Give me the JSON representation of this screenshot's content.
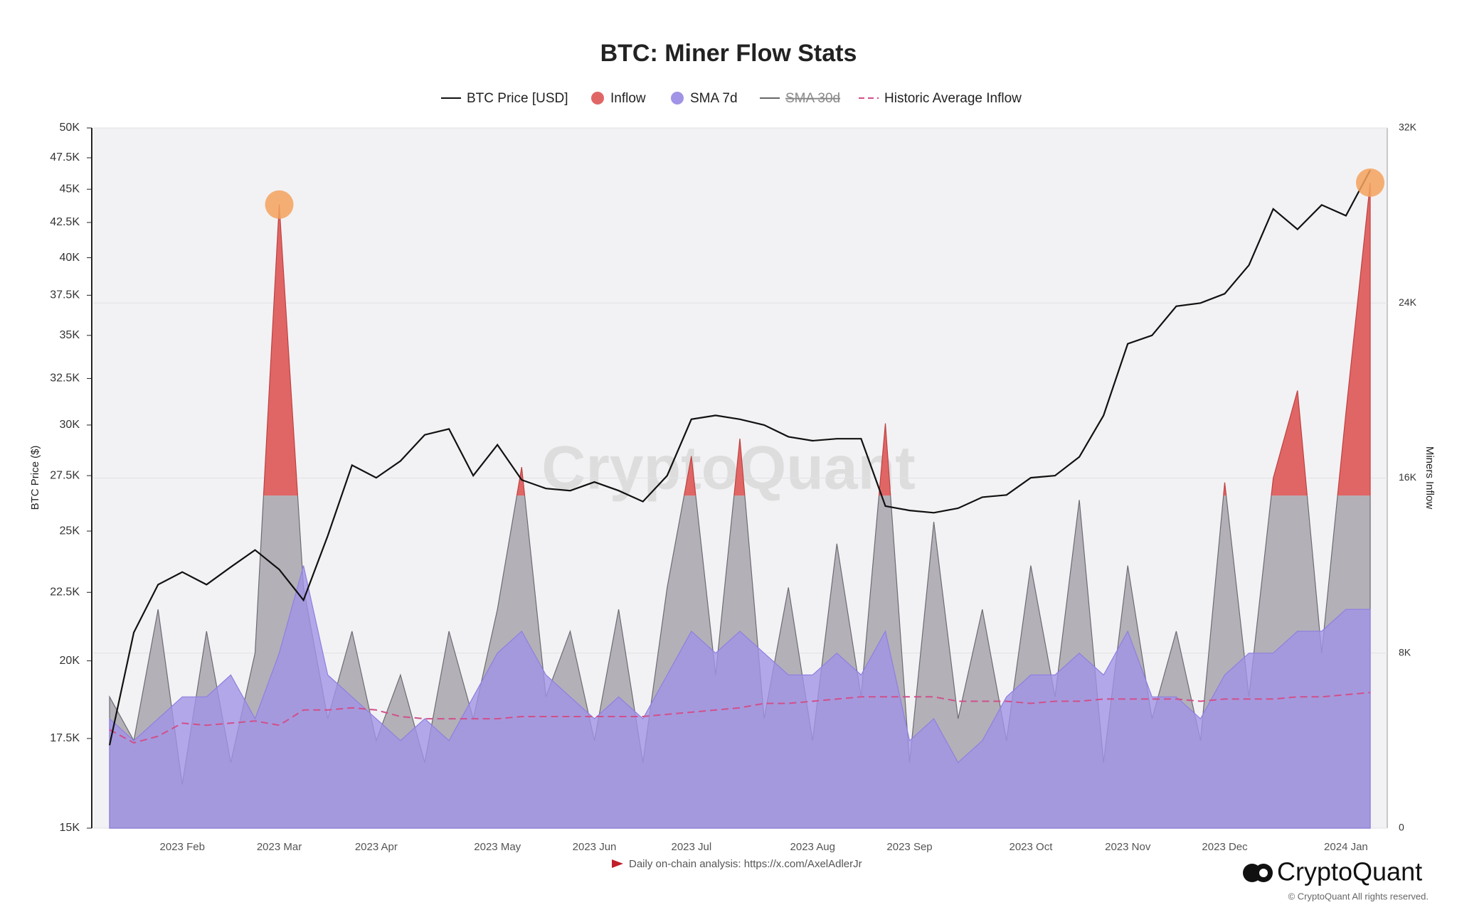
{
  "chart_data": {
    "type": "dual_axis_area_line",
    "title": "BTC: Miner Flow Stats",
    "y_label": "BTC Price ($)",
    "y2_label": "Miners Inflow",
    "watermark": "CryptoQuant",
    "footer_note": "Daily on-chain analysis: https://x.com/AxelAdlerJr",
    "brand": "CryptoQuant",
    "copyright": "© CryptoQuant All rights reserved.",
    "categories": [
      null,
      null,
      null,
      "2023 Feb",
      null,
      null,
      null,
      "2023 Mar",
      null,
      null,
      null,
      "2023 Apr",
      null,
      null,
      null,
      null,
      "2023 May",
      null,
      null,
      null,
      "2023 Jun",
      null,
      null,
      null,
      "2023 Jul",
      null,
      null,
      null,
      null,
      "2023 Aug",
      null,
      null,
      null,
      "2023 Sep",
      null,
      null,
      null,
      null,
      "2023 Oct",
      null,
      null,
      null,
      "2023 Nov",
      null,
      null,
      null,
      "2023 Dec",
      null,
      null,
      null,
      null,
      "2024 Jan",
      null
    ],
    "ylim": [
      15000,
      50000
    ],
    "y_scale": "log",
    "yticks": [
      {
        "value": 15000,
        "label": "15K"
      },
      {
        "value": 17500,
        "label": "17.5K"
      },
      {
        "value": 20000,
        "label": "20K"
      },
      {
        "value": 22500,
        "label": "22.5K"
      },
      {
        "value": 25000,
        "label": "25K"
      },
      {
        "value": 27500,
        "label": "27.5K"
      },
      {
        "value": 30000,
        "label": "30K"
      },
      {
        "value": 32500,
        "label": "32.5K"
      },
      {
        "value": 35000,
        "label": "35K"
      },
      {
        "value": 37500,
        "label": "37.5K"
      },
      {
        "value": 40000,
        "label": "40K"
      },
      {
        "value": 42500,
        "label": "42.5K"
      },
      {
        "value": 45000,
        "label": "45K"
      },
      {
        "value": 47500,
        "label": "47.5K"
      },
      {
        "value": 50000,
        "label": "50K"
      }
    ],
    "y2lim": [
      0,
      32000
    ],
    "y2ticks": [
      0,
      {
        "value": 8000,
        "label": "8K"
      },
      {
        "value": 16000,
        "label": "16K"
      },
      {
        "value": 24000,
        "label": "24K"
      },
      {
        "value": 32000,
        "label": "32K"
      }
    ],
    "grid": true,
    "series": [
      {
        "name": "BTC Price [USD]",
        "kind": "line",
        "color": "#111111",
        "axis": "y",
        "values": [
          17300,
          21000,
          22800,
          23300,
          22800,
          23500,
          24200,
          23400,
          22200,
          24800,
          28000,
          27400,
          28200,
          29500,
          29800,
          27500,
          29000,
          27300,
          26900,
          26800,
          27200,
          26800,
          26300,
          27500,
          30300,
          30500,
          30300,
          30000,
          29400,
          29200,
          29300,
          29300,
          26100,
          25900,
          25800,
          26000,
          26500,
          26600,
          27400,
          27500,
          28400,
          30500,
          34500,
          35000,
          36800,
          37000,
          37600,
          39500,
          43500,
          42000,
          43800,
          43000,
          46500
        ]
      },
      {
        "name": "Inflow",
        "kind": "area",
        "color": "#b3b0b8",
        "highlight_color": "#e06666",
        "highlight_above": 15200,
        "highlighted_indices": [
          7,
          52
        ],
        "marker_color": "#f5a25d",
        "axis": "y2",
        "values": [
          6000,
          4000,
          10000,
          2000,
          9000,
          3000,
          8000,
          28500,
          11000,
          5000,
          9000,
          4000,
          7000,
          3000,
          9000,
          5000,
          10000,
          16500,
          6000,
          9000,
          4000,
          10000,
          3000,
          11000,
          17000,
          7000,
          17800,
          5000,
          11000,
          4000,
          13000,
          6000,
          18500,
          3000,
          14000,
          5000,
          10000,
          4000,
          12000,
          6000,
          15000,
          3000,
          12000,
          5000,
          9000,
          4000,
          15800,
          6000,
          16000,
          20000,
          8000,
          19000,
          29500
        ]
      },
      {
        "name": "SMA 7d",
        "kind": "area",
        "color": "#a193e6",
        "axis": "y2",
        "values": [
          5000,
          4000,
          5000,
          6000,
          6000,
          7000,
          5000,
          8000,
          12000,
          7000,
          6000,
          5000,
          4000,
          5000,
          4000,
          6000,
          8000,
          9000,
          7000,
          6000,
          5000,
          6000,
          5000,
          7000,
          9000,
          8000,
          9000,
          8000,
          7000,
          7000,
          8000,
          7000,
          9000,
          4000,
          5000,
          3000,
          4000,
          6000,
          7000,
          7000,
          8000,
          7000,
          9000,
          6000,
          6000,
          5000,
          7000,
          8000,
          8000,
          9000,
          9000,
          10000,
          10000
        ]
      },
      {
        "name": "SMA 30d",
        "kind": "line",
        "color": "#666666",
        "axis": "y2",
        "visible": false
      },
      {
        "name": "Historic Average Inflow",
        "kind": "dashed",
        "color": "#d0508a",
        "axis": "y2",
        "values": [
          4500,
          3900,
          4200,
          4800,
          4700,
          4800,
          4900,
          4700,
          5400,
          5400,
          5500,
          5400,
          5100,
          5000,
          5000,
          5000,
          5000,
          5100,
          5100,
          5100,
          5100,
          5100,
          5100,
          5200,
          5300,
          5400,
          5500,
          5700,
          5700,
          5800,
          5900,
          6000,
          6000,
          6000,
          6000,
          5800,
          5800,
          5800,
          5700,
          5800,
          5800,
          5900,
          5900,
          5900,
          5900,
          5800,
          5900,
          5900,
          5900,
          6000,
          6000,
          6100,
          6200
        ]
      }
    ]
  }
}
